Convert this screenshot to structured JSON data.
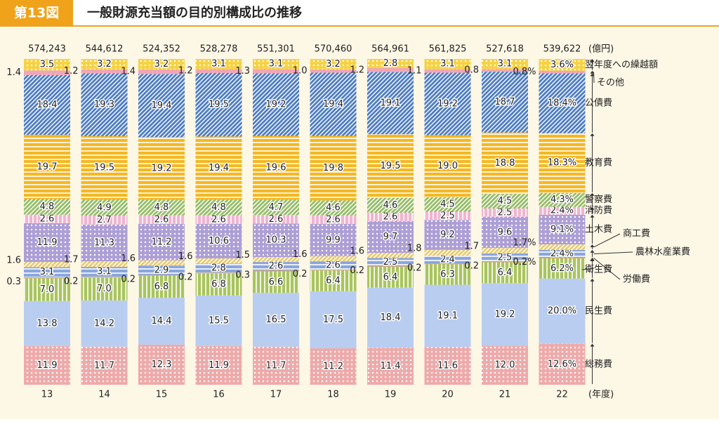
{
  "chart_data": {
    "type": "stacked-bar",
    "figure_label": "第13図",
    "title": "一般財源充当額の目的別構成比の推移",
    "total_unit": "(億円)",
    "x_unit": "(年度)",
    "categories": [
      "13",
      "14",
      "15",
      "16",
      "17",
      "18",
      "19",
      "20",
      "21",
      "22"
    ],
    "totals": [
      {
        "value": 574243,
        "label": "574,243"
      },
      {
        "value": 544612,
        "label": "544,612"
      },
      {
        "value": 524352,
        "label": "524,352"
      },
      {
        "value": 528278,
        "label": "528,278"
      },
      {
        "value": 551301,
        "label": "551,301"
      },
      {
        "value": 570460,
        "label": "570,460"
      },
      {
        "value": 564961,
        "label": "564,961"
      },
      {
        "value": 561825,
        "label": "561,825"
      },
      {
        "value": 527618,
        "label": "527,618"
      },
      {
        "value": 539622,
        "label": "539,622"
      }
    ],
    "ylim": [
      0,
      100
    ],
    "series": [
      {
        "name": "総務費",
        "color": "#eeaaaa",
        "pattern": "dots",
        "values": [
          11.9,
          11.7,
          12.3,
          11.9,
          11.7,
          11.2,
          11.4,
          11.6,
          12.0,
          12.6
        ],
        "value_labels": [
          "11.9",
          "11.7",
          "12.3",
          "11.9",
          "11.7",
          "11.2",
          "11.4",
          "11.6",
          "12.0",
          "12.6%"
        ]
      },
      {
        "name": "民生費",
        "color": "#b9cdf0",
        "pattern": "plain",
        "values": [
          13.8,
          14.2,
          14.4,
          15.5,
          16.5,
          17.5,
          18.4,
          19.1,
          19.2,
          20.0
        ],
        "value_labels": [
          "13.8",
          "14.2",
          "14.4",
          "15.5",
          "16.5",
          "17.5",
          "18.4",
          "19.1",
          "19.2",
          "20.0%"
        ]
      },
      {
        "name": "衛生費",
        "color": "#a9c45e",
        "pattern": "vstripes",
        "values": [
          7.0,
          7.0,
          6.8,
          6.8,
          6.6,
          6.4,
          6.4,
          6.3,
          6.4,
          6.2
        ],
        "value_labels": [
          "7.0",
          "7.0",
          "6.8",
          "6.8",
          "6.6",
          "6.4",
          "6.4",
          "6.3",
          "6.4",
          "6.2%"
        ]
      },
      {
        "name": "労働費",
        "color": "#d9a066",
        "pattern": "plain",
        "values": [
          0.3,
          0.2,
          0.2,
          0.2,
          0.3,
          0.2,
          0.2,
          0.2,
          0.2,
          0.2
        ],
        "value_labels": [
          "0.3",
          "0.2",
          "0.2",
          "0.2",
          "0.3",
          "0.2",
          "0.2",
          "0.2",
          "0.2",
          "0.2%"
        ]
      },
      {
        "name": "農林水産業費",
        "color": "#8aa6dc",
        "pattern": "hstripes",
        "values": [
          3.1,
          3.1,
          2.9,
          2.8,
          2.6,
          2.6,
          2.5,
          2.4,
          2.5,
          2.4
        ],
        "value_labels": [
          "3.1",
          "3.1",
          "2.9",
          "2.8",
          "2.6",
          "2.6",
          "2.5",
          "2.4",
          "2.5",
          "2.4%"
        ]
      },
      {
        "name": "商工費",
        "color": "#e8cc70",
        "pattern": "diag",
        "values": [
          1.6,
          1.7,
          1.6,
          1.6,
          1.5,
          1.6,
          1.6,
          1.8,
          1.7,
          1.7
        ],
        "value_labels": [
          "1.6",
          "1.7",
          "1.6",
          "1.6",
          "1.5",
          "1.6",
          "1.6",
          "1.8",
          "1.7",
          "1.7%"
        ]
      },
      {
        "name": "土木費",
        "color": "#ad9fd6",
        "pattern": "dots",
        "values": [
          11.9,
          11.3,
          11.2,
          10.6,
          10.3,
          9.9,
          9.7,
          9.2,
          9.6,
          9.1
        ],
        "value_labels": [
          "11.9",
          "11.3",
          "11.2",
          "10.6",
          "10.3",
          "9.9",
          "9.7",
          "9.2",
          "9.6",
          "9.1%"
        ]
      },
      {
        "name": "消防費",
        "color": "#f0b4d0",
        "pattern": "vstripes",
        "values": [
          2.6,
          2.7,
          2.6,
          2.6,
          2.6,
          2.6,
          2.6,
          2.5,
          2.5,
          2.4
        ],
        "value_labels": [
          "2.6",
          "2.7",
          "2.6",
          "2.6",
          "2.6",
          "2.6",
          "2.6",
          "2.5",
          "2.5",
          "2.4%"
        ]
      },
      {
        "name": "警察費",
        "color": "#96bc68",
        "pattern": "diag",
        "values": [
          4.8,
          4.9,
          4.8,
          4.8,
          4.7,
          4.6,
          4.6,
          4.5,
          4.5,
          4.3
        ],
        "value_labels": [
          "4.8",
          "4.9",
          "4.8",
          "4.8",
          "4.7",
          "4.6",
          "4.6",
          "4.5",
          "4.5",
          "4.3%"
        ]
      },
      {
        "name": "教育費",
        "color": "#f3b824",
        "pattern": "hstripes",
        "values": [
          19.7,
          19.5,
          19.2,
          19.4,
          19.6,
          19.8,
          19.5,
          19.0,
          18.8,
          18.3
        ],
        "value_labels": [
          "19.7",
          "19.5",
          "19.2",
          "19.4",
          "19.6",
          "19.8",
          "19.5",
          "19.0",
          "18.8",
          "18.3%"
        ]
      },
      {
        "name": "公債費",
        "color": "#4d7cc4",
        "pattern": "diag",
        "values": [
          18.4,
          19.3,
          19.4,
          19.5,
          19.2,
          19.4,
          19.1,
          19.2,
          18.7,
          18.4
        ],
        "value_labels": [
          "18.4",
          "19.3",
          "19.4",
          "19.5",
          "19.2",
          "19.4",
          "19.1",
          "19.2",
          "18.7",
          "18.4%"
        ]
      },
      {
        "name": "その他",
        "color": "#f0a6b6",
        "pattern": "plain",
        "values": [
          1.4,
          1.2,
          1.4,
          1.2,
          1.3,
          1.0,
          1.2,
          1.1,
          0.8,
          0.8
        ],
        "value_labels": [
          "1.4",
          "1.2",
          "1.4",
          "1.2",
          "1.3",
          "1.0",
          "1.2",
          "1.1",
          "0.8",
          "0.8%"
        ]
      },
      {
        "name": "翌年度への繰越額",
        "color": "#f5d246",
        "pattern": "dots",
        "values": [
          3.5,
          3.2,
          3.2,
          3.1,
          3.1,
          3.2,
          2.8,
          3.1,
          3.1,
          3.6
        ],
        "value_labels": [
          "3.5",
          "3.2",
          "3.2",
          "3.1",
          "3.1",
          "3.2",
          "2.8",
          "3.1",
          "3.1",
          "3.6%"
        ]
      }
    ]
  }
}
